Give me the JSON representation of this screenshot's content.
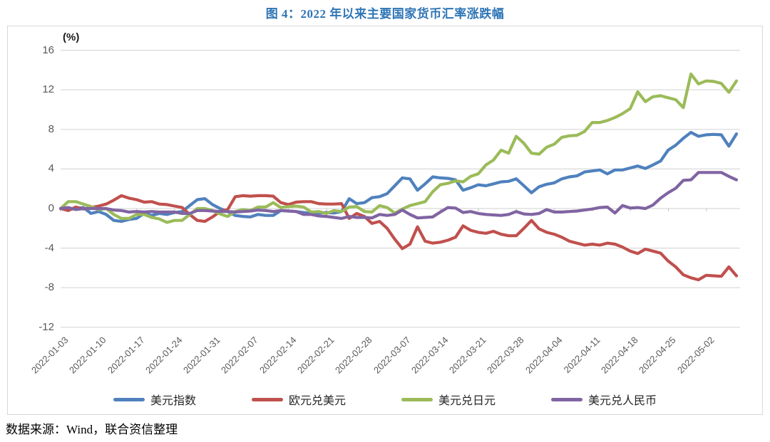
{
  "title": "图 4：2022 年以来主要国家货币汇率涨跌幅",
  "source_note": "数据来源：Wind，联合资信整理",
  "colors": {
    "title_blue": "#2E75B6",
    "grid": "#D9D9D9",
    "axis_text": "#595959",
    "usd_index": "#4F81BD",
    "eur_usd": "#C0504D",
    "usd_jpy": "#9BBB59",
    "usd_cny": "#8064A2"
  },
  "chart_data": {
    "type": "line",
    "title": "图 4：2022 年以来主要国家货币汇率涨跌幅",
    "ylabel": "(%)",
    "xlabel": "",
    "ylim": [
      -12,
      16
    ],
    "ytick_step": 4,
    "grid": "horizontal",
    "legend_position": "bottom",
    "x_tick_labels": [
      "2022-01-03",
      "2022-01-10",
      "2022-01-17",
      "2022-01-24",
      "2022-01-31",
      "2022-02-07",
      "2022-02-14",
      "2022-02-21",
      "2022-02-28",
      "2022-03-07",
      "2022-03-14",
      "2022-03-21",
      "2022-03-28",
      "2022-04-04",
      "2022-04-11",
      "2022-04-18",
      "2022-04-25",
      "2022-05-02"
    ],
    "x": [
      "2022-01-03",
      "2022-01-04",
      "2022-01-05",
      "2022-01-06",
      "2022-01-07",
      "2022-01-10",
      "2022-01-11",
      "2022-01-12",
      "2022-01-13",
      "2022-01-14",
      "2022-01-17",
      "2022-01-18",
      "2022-01-19",
      "2022-01-20",
      "2022-01-21",
      "2022-01-24",
      "2022-01-25",
      "2022-01-26",
      "2022-01-27",
      "2022-01-28",
      "2022-01-31",
      "2022-02-01",
      "2022-02-02",
      "2022-02-03",
      "2022-02-04",
      "2022-02-07",
      "2022-02-08",
      "2022-02-09",
      "2022-02-10",
      "2022-02-11",
      "2022-02-14",
      "2022-02-15",
      "2022-02-16",
      "2022-02-17",
      "2022-02-18",
      "2022-02-21",
      "2022-02-22",
      "2022-02-23",
      "2022-02-24",
      "2022-02-25",
      "2022-02-28",
      "2022-03-01",
      "2022-03-02",
      "2022-03-03",
      "2022-03-04",
      "2022-03-07",
      "2022-03-08",
      "2022-03-09",
      "2022-03-10",
      "2022-03-11",
      "2022-03-14",
      "2022-03-15",
      "2022-03-16",
      "2022-03-17",
      "2022-03-18",
      "2022-03-21",
      "2022-03-22",
      "2022-03-23",
      "2022-03-24",
      "2022-03-25",
      "2022-03-28",
      "2022-03-29",
      "2022-03-30",
      "2022-03-31",
      "2022-04-01",
      "2022-04-04",
      "2022-04-05",
      "2022-04-06",
      "2022-04-07",
      "2022-04-08",
      "2022-04-11",
      "2022-04-12",
      "2022-04-13",
      "2022-04-14",
      "2022-04-15",
      "2022-04-18",
      "2022-04-19",
      "2022-04-20",
      "2022-04-21",
      "2022-04-22",
      "2022-04-25",
      "2022-04-26",
      "2022-04-27",
      "2022-04-28",
      "2022-04-29",
      "2022-05-02",
      "2022-05-03",
      "2022-05-04",
      "2022-05-05",
      "2022-05-06"
    ],
    "series": [
      {
        "name": "美元指数",
        "color": "#4F81BD",
        "values": [
          0,
          -0.1,
          0,
          0.1,
          -0.5,
          -0.3,
          -0.6,
          -1.2,
          -1.3,
          -1.1,
          -1,
          -0.5,
          -0.7,
          -0.5,
          -0.6,
          -0.4,
          -0.3,
          0.3,
          0.9,
          1,
          0.4,
          0,
          -0.3,
          -0.7,
          -0.8,
          -0.85,
          -0.6,
          -0.7,
          -0.7,
          -0.2,
          -0.25,
          -0.3,
          -0.4,
          -0.5,
          -0.45,
          -0.4,
          -0.45,
          -0.3,
          1,
          0.5,
          0.6,
          1.1,
          1.2,
          1.5,
          2.3,
          3.1,
          3,
          1.85,
          2.5,
          3.2,
          3.1,
          3.05,
          2.9,
          1.85,
          2.1,
          2.4,
          2.3,
          2.5,
          2.7,
          2.75,
          3,
          2.3,
          1.6,
          2.2,
          2.45,
          2.6,
          3,
          3.2,
          3.3,
          3.7,
          3.8,
          3.9,
          3.5,
          3.9,
          3.9,
          4.1,
          4.3,
          4.05,
          4.4,
          4.8,
          5.9,
          6.4,
          7.1,
          7.7,
          7.3,
          7.45,
          7.5,
          7.45,
          6.3,
          7.55
        ]
      },
      {
        "name": "欧元兑美元",
        "color": "#C0504D",
        "values": [
          0,
          -0.2,
          0.15,
          -0.05,
          0.1,
          0.25,
          0.45,
          0.85,
          1.3,
          1.05,
          0.9,
          0.65,
          0.7,
          0.45,
          0.4,
          0.25,
          0.1,
          -0.6,
          -1.2,
          -1.3,
          -0.85,
          -0.3,
          -0.1,
          1.2,
          1.3,
          1.25,
          1.3,
          1.3,
          1.25,
          0.6,
          0.4,
          0.65,
          0.7,
          0.7,
          0.5,
          0.45,
          0.45,
          0.5,
          -1,
          -0.5,
          -0.8,
          -1.5,
          -1.3,
          -2,
          -3.1,
          -4.05,
          -3.6,
          -1.85,
          -3.3,
          -3.5,
          -3.4,
          -3.2,
          -2.9,
          -1.75,
          -2.2,
          -2.4,
          -2.5,
          -2.3,
          -2.6,
          -2.75,
          -2.75,
          -2,
          -1.2,
          -2.05,
          -2.4,
          -2.6,
          -2.9,
          -3.3,
          -3.5,
          -3.7,
          -3.6,
          -3.7,
          -3.5,
          -3.6,
          -3.9,
          -4.3,
          -4.55,
          -4.1,
          -4.3,
          -4.5,
          -5.3,
          -5.9,
          -6.7,
          -7,
          -7.2,
          -6.75,
          -6.8,
          -6.85,
          -5.9,
          -6.8
        ]
      },
      {
        "name": "美元兑日元",
        "color": "#9BBB59",
        "values": [
          0,
          0.7,
          0.7,
          0.45,
          0.2,
          -0.1,
          0,
          -0.6,
          -1,
          -1,
          -0.6,
          -0.6,
          -0.9,
          -1.05,
          -1.4,
          -1.2,
          -1.2,
          -0.6,
          0,
          0,
          -0.2,
          -0.55,
          -0.8,
          -0.3,
          -0.1,
          -0.2,
          0.15,
          0.15,
          0.6,
          0.1,
          0.2,
          0.25,
          0.15,
          -0.35,
          -0.3,
          -0.5,
          -0.2,
          -0.3,
          0.15,
          0.2,
          -0.3,
          -0.35,
          0.3,
          0.1,
          -0.45,
          -0.05,
          0.3,
          0.5,
          0.7,
          1.7,
          2.4,
          2.55,
          2.8,
          2.7,
          3.25,
          3.5,
          4.4,
          4.9,
          5.9,
          5.6,
          7.3,
          6.6,
          5.6,
          5.5,
          6.2,
          6.5,
          7.2,
          7.35,
          7.4,
          7.8,
          8.7,
          8.7,
          8.9,
          9.2,
          9.6,
          10.1,
          11.8,
          10.8,
          11.3,
          11.4,
          11.2,
          11,
          10.2,
          13.6,
          12.6,
          12.9,
          12.85,
          12.65,
          11.75,
          12.9
        ]
      },
      {
        "name": "美元兑人民币",
        "color": "#8064A2",
        "values": [
          0,
          0.1,
          -0.1,
          0,
          0,
          0,
          0,
          -0.15,
          -0.2,
          -0.35,
          -0.3,
          -0.35,
          -0.3,
          -0.35,
          -0.35,
          -0.35,
          -0.5,
          -0.5,
          -0.2,
          -0.2,
          -0.25,
          -0.3,
          -0.3,
          -0.35,
          -0.3,
          -0.25,
          -0.15,
          -0.2,
          -0.3,
          -0.2,
          -0.25,
          -0.3,
          -0.6,
          -0.6,
          -0.75,
          -0.8,
          -0.9,
          -1,
          -0.8,
          -0.9,
          -0.9,
          -0.95,
          -0.6,
          -0.7,
          -0.6,
          -0.15,
          -0.6,
          -0.95,
          -0.9,
          -0.85,
          -0.35,
          0.1,
          0.05,
          -0.4,
          -0.3,
          -0.5,
          -0.6,
          -0.65,
          -0.7,
          -0.6,
          -0.3,
          -0.55,
          -0.6,
          -0.5,
          -0.1,
          -0.35,
          -0.35,
          -0.3,
          -0.25,
          -0.15,
          -0.05,
          0.1,
          0.15,
          -0.45,
          0.3,
          0.05,
          0.1,
          0,
          0.35,
          1.05,
          1.6,
          2.05,
          2.85,
          2.9,
          3.65,
          3.65,
          3.65,
          3.65,
          3.25,
          2.9
        ]
      }
    ]
  }
}
